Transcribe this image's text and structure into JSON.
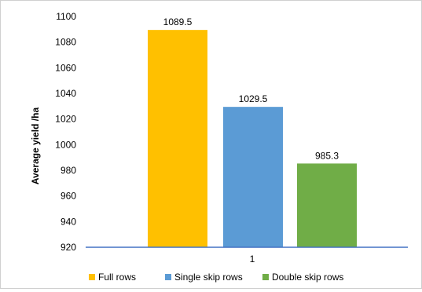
{
  "chart_data": {
    "type": "bar",
    "title": "",
    "xlabel": "",
    "ylabel": "Average yield /ha",
    "categories": [
      "1"
    ],
    "ylim": [
      920,
      1100
    ],
    "yticks": [
      920,
      940,
      960,
      980,
      1000,
      1020,
      1040,
      1060,
      1080,
      1100
    ],
    "grid": false,
    "legend_position": "bottom",
    "series": [
      {
        "name": "Full rows",
        "values": [
          1089.5
        ],
        "label": "1089.5",
        "color": "#FFC000"
      },
      {
        "name": "Single skip rows",
        "values": [
          1029.5
        ],
        "label": "1029.5",
        "color": "#5B9BD5"
      },
      {
        "name": "Double skip rows",
        "values": [
          985.3
        ],
        "label": "985.3",
        "color": "#70AD47"
      }
    ]
  }
}
